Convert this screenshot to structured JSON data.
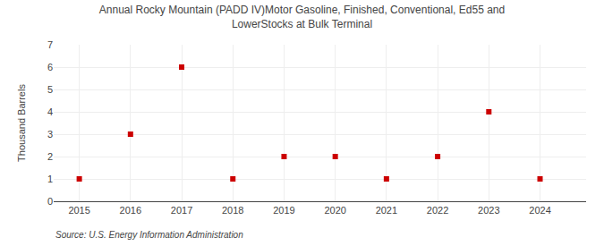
{
  "chart_data": {
    "type": "scatter",
    "title": "Annual Rocky Mountain (PADD IV)Motor Gasoline, Finished, Conventional, Ed55 and",
    "subtitle": "LowerStocks at Bulk Terminal",
    "ylabel": "Thousand Barrels",
    "annotations": [
      "Source: U.S. Energy Information Administration"
    ],
    "x": [
      2015,
      2016,
      2017,
      2018,
      2019,
      2020,
      2021,
      2022,
      2023,
      2024
    ],
    "values": [
      1,
      3,
      6,
      1,
      2,
      2,
      1,
      2,
      4,
      1
    ],
    "color": "#cc0000",
    "marker": "square",
    "xlim": [
      2014.5,
      2024.9
    ],
    "xticks": [
      2015,
      2016,
      2017,
      2018,
      2019,
      2020,
      2021,
      2022,
      2023,
      2024
    ],
    "ylim": [
      0,
      7
    ],
    "yticks": [
      0,
      1,
      2,
      3,
      4,
      5,
      6,
      7
    ],
    "grid": true
  }
}
